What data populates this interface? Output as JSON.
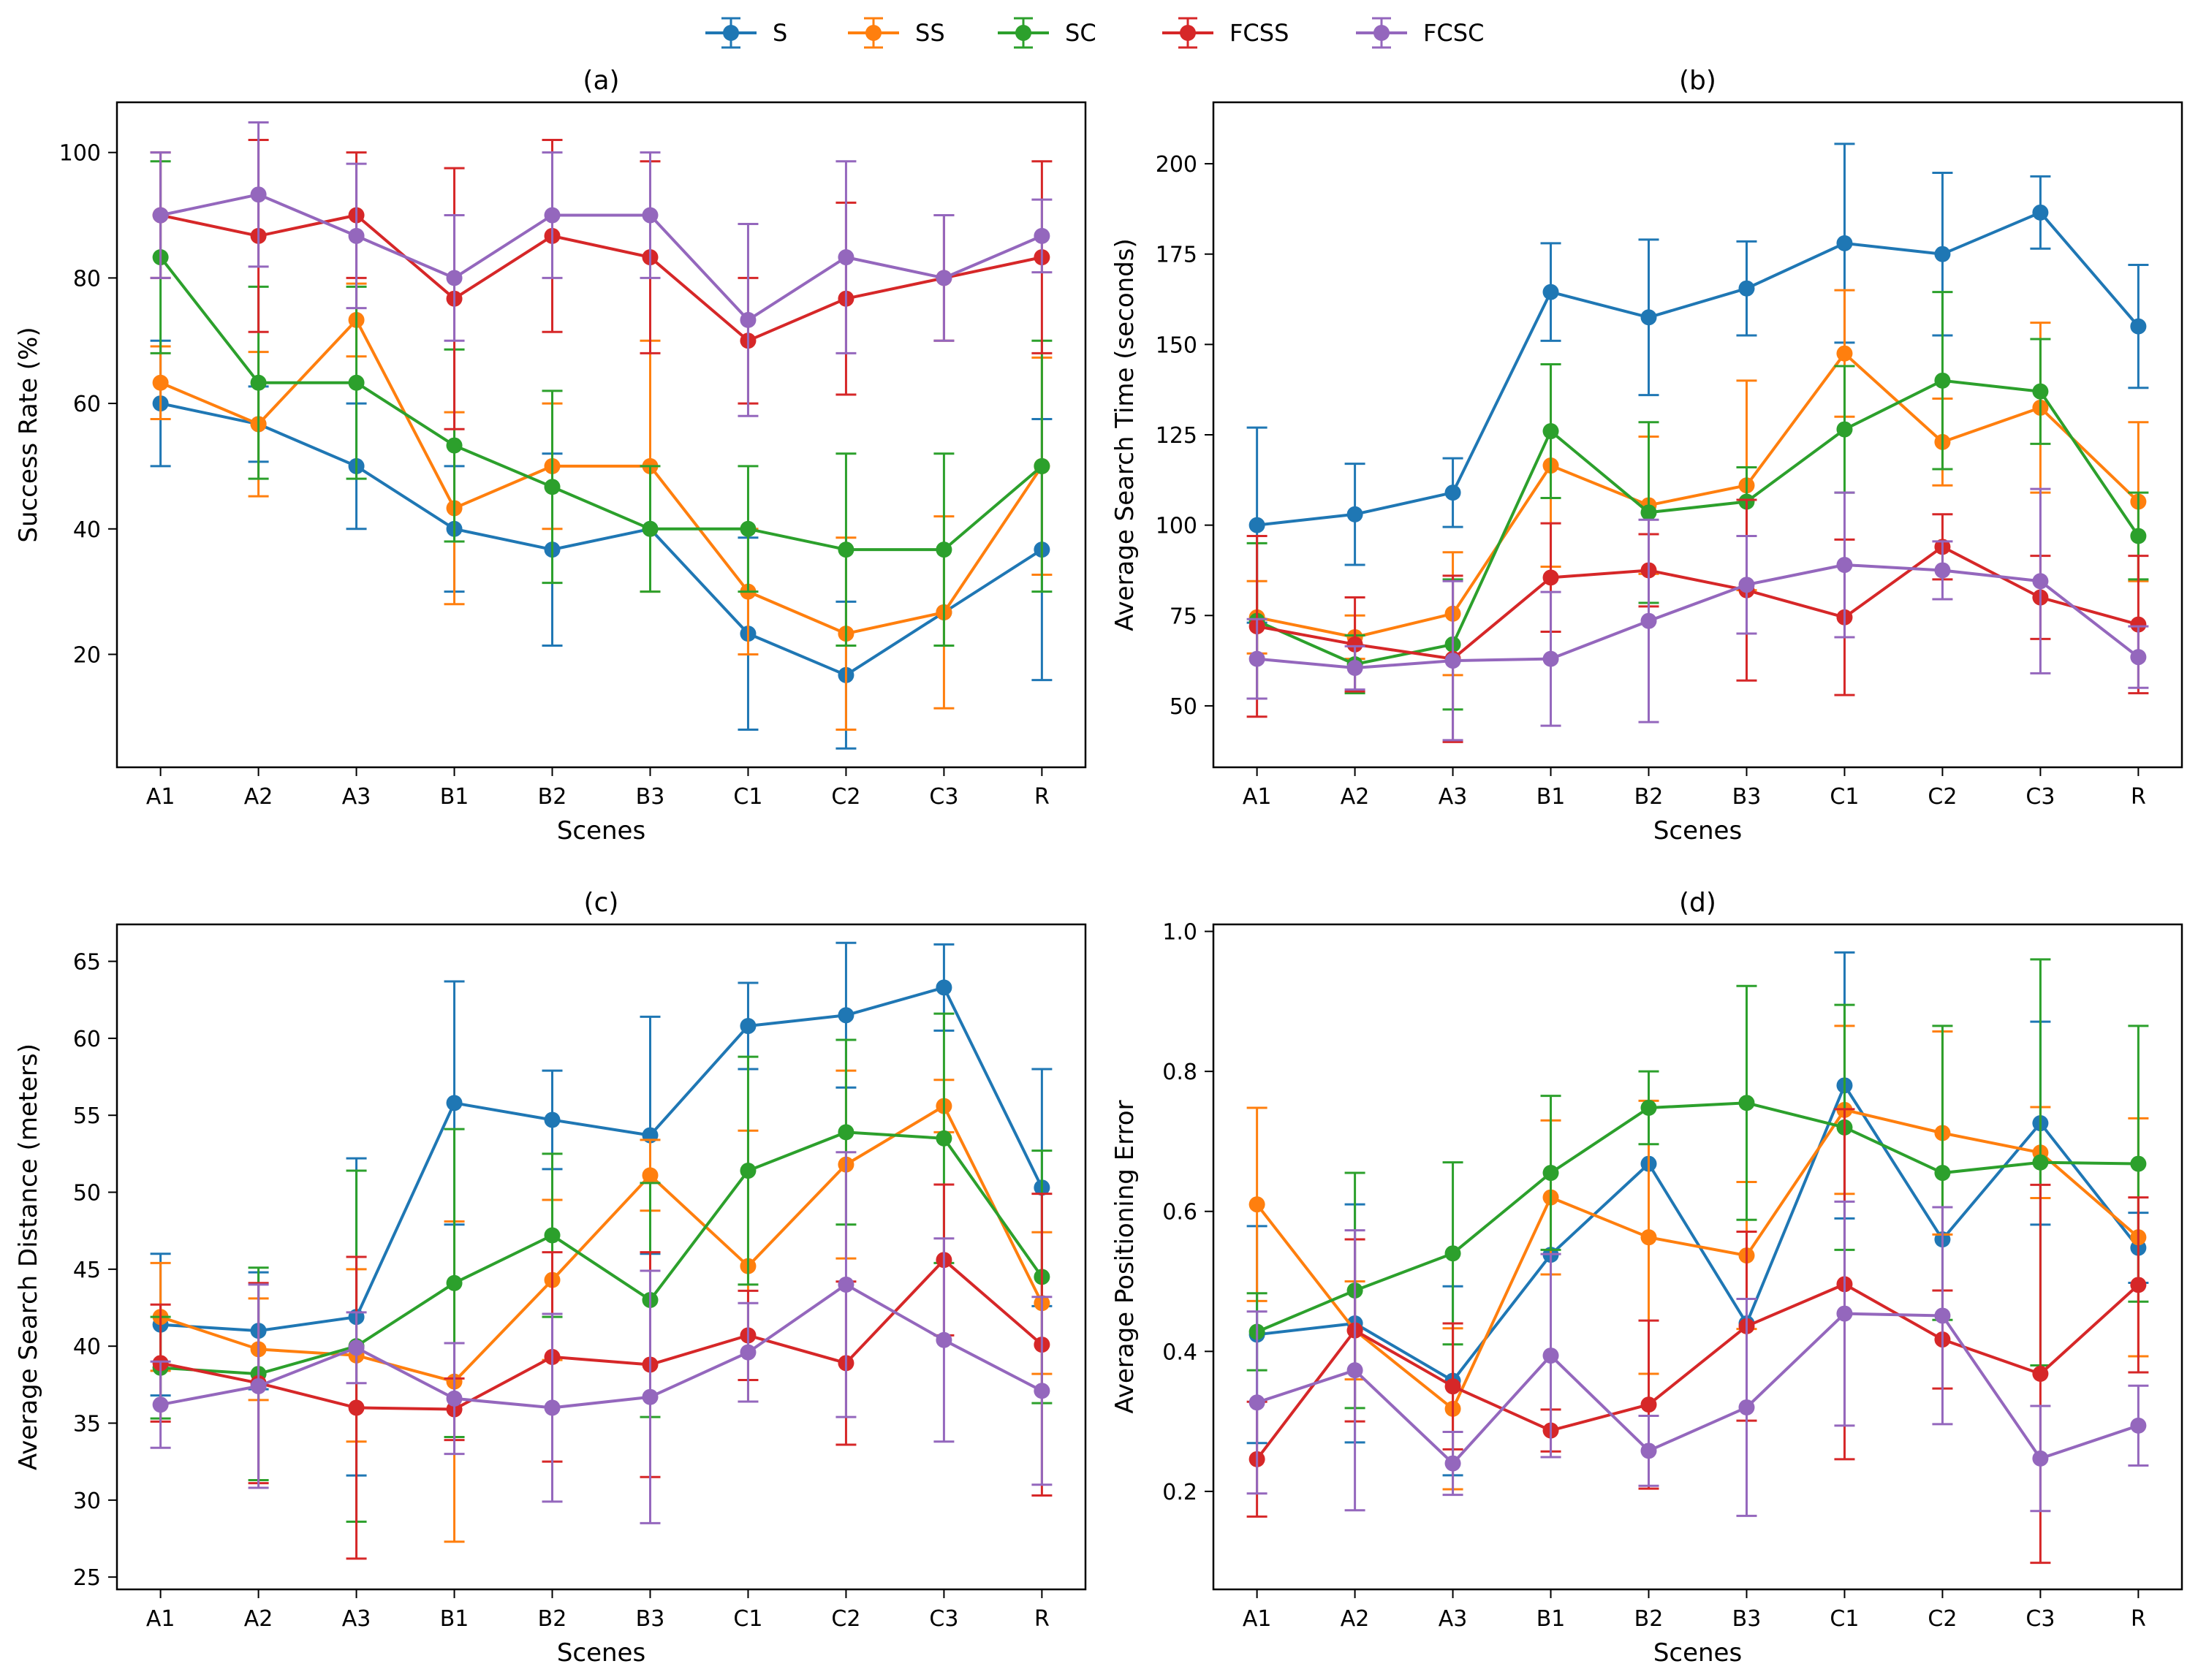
{
  "legend": [
    {
      "name": "S",
      "color": "#1f77b4"
    },
    {
      "name": "SS",
      "color": "#ff7f0e"
    },
    {
      "name": "SC",
      "color": "#2ca02c"
    },
    {
      "name": "FCSS",
      "color": "#d62728"
    },
    {
      "name": "FCSC",
      "color": "#9467bd"
    }
  ],
  "chart_data": [
    {
      "type": "line",
      "title": "(a)",
      "xlabel": "Scenes",
      "ylabel": "Success Rate (%)",
      "categories": [
        "A1",
        "A2",
        "A3",
        "B1",
        "B2",
        "B3",
        "C1",
        "C2",
        "C3",
        "R"
      ],
      "ylim": [
        2,
        108
      ],
      "yticks": [
        20,
        40,
        60,
        80,
        100
      ],
      "yticklabels": [
        "20",
        "40",
        "60",
        "80",
        "100"
      ],
      "series": [
        {
          "name": "S",
          "values": [
            60,
            56.7,
            50,
            40,
            36.7,
            40,
            23.3,
            16.7,
            26.7,
            36.7
          ],
          "errors": [
            10,
            6,
            10,
            10,
            15.3,
            0,
            15.3,
            11.7,
            0,
            20.8
          ]
        },
        {
          "name": "SS",
          "values": [
            63.3,
            56.7,
            73.3,
            43.3,
            50,
            50,
            30,
            23.3,
            26.7,
            50
          ],
          "errors": [
            5.8,
            11.5,
            5.8,
            15.3,
            10,
            20,
            10,
            15.3,
            15.3,
            17.3
          ]
        },
        {
          "name": "SC",
          "values": [
            83.3,
            63.3,
            63.3,
            53.3,
            46.7,
            40,
            40,
            36.7,
            36.7,
            50
          ],
          "errors": [
            15.3,
            15.3,
            15.3,
            15.3,
            15.3,
            10,
            10,
            15.3,
            15.3,
            20
          ]
        },
        {
          "name": "FCSS",
          "values": [
            90,
            86.7,
            90,
            76.7,
            86.7,
            83.3,
            70,
            76.7,
            80,
            83.3
          ],
          "errors": [
            10,
            15.3,
            10,
            20.8,
            15.3,
            15.3,
            10,
            15.3,
            10,
            15.3
          ]
        },
        {
          "name": "FCSC",
          "values": [
            90,
            93.3,
            86.7,
            80,
            90,
            90,
            73.3,
            83.3,
            80,
            86.7
          ],
          "errors": [
            10,
            11.5,
            11.5,
            10,
            10,
            10,
            15.3,
            15.3,
            10,
            5.8
          ]
        }
      ]
    },
    {
      "type": "line",
      "title": "(b)",
      "xlabel": "Scenes",
      "ylabel": "Average Search Time (seconds)",
      "categories": [
        "A1",
        "A2",
        "A3",
        "B1",
        "B2",
        "B3",
        "C1",
        "C2",
        "C3",
        "R"
      ],
      "ylim": [
        33,
        217
      ],
      "yticks": [
        50,
        75,
        100,
        125,
        150,
        175,
        200
      ],
      "yticklabels": [
        "50",
        "75",
        "100",
        "125",
        "150",
        "175",
        "200"
      ],
      "series": [
        {
          "name": "S",
          "values": [
            100,
            103,
            109,
            164.5,
            157.5,
            165.5,
            178,
            175,
            186.5,
            155
          ],
          "errors": [
            27,
            14,
            9.5,
            13.5,
            21.5,
            13,
            27.5,
            22.5,
            10,
            17
          ]
        },
        {
          "name": "SS",
          "values": [
            74.5,
            69,
            75.5,
            116.5,
            105.5,
            111,
            147.5,
            123,
            132.5,
            106.5
          ],
          "errors": [
            10,
            6,
            17,
            28,
            19,
            29,
            17.5,
            12,
            23.5,
            22
          ]
        },
        {
          "name": "SC",
          "values": [
            73.5,
            61.5,
            67,
            126,
            103.5,
            106.5,
            126.5,
            140,
            137,
            97
          ],
          "errors": [
            21.5,
            8,
            18,
            18.5,
            25,
            9.5,
            17.5,
            24.5,
            14.5,
            12
          ]
        },
        {
          "name": "FCSS",
          "values": [
            72,
            67,
            63,
            85.5,
            87.5,
            82,
            74.5,
            94,
            80,
            72.5
          ],
          "errors": [
            25,
            13,
            23,
            15,
            10,
            25,
            21.5,
            9,
            11.5,
            19
          ]
        },
        {
          "name": "FCSC",
          "values": [
            63,
            60.5,
            62.5,
            63,
            73.5,
            83.5,
            89,
            87.5,
            84.5,
            63.5
          ],
          "errors": [
            11,
            6,
            22,
            18.5,
            28,
            13.5,
            20,
            8,
            25.5,
            8.5
          ]
        }
      ]
    },
    {
      "type": "line",
      "title": "(c)",
      "xlabel": "Scenes",
      "ylabel": "Average Search Distance (meters)",
      "categories": [
        "A1",
        "A2",
        "A3",
        "B1",
        "B2",
        "B3",
        "C1",
        "C2",
        "C3",
        "R"
      ],
      "ylim": [
        24.2,
        67.4
      ],
      "yticks": [
        25,
        30,
        35,
        40,
        45,
        50,
        55,
        60,
        65
      ],
      "yticklabels": [
        "25",
        "30",
        "35",
        "40",
        "45",
        "50",
        "55",
        "60",
        "65"
      ],
      "series": [
        {
          "name": "S",
          "values": [
            41.4,
            41.0,
            41.9,
            55.8,
            54.7,
            53.7,
            60.8,
            61.5,
            63.3,
            50.3
          ],
          "errors": [
            4.6,
            3.8,
            10.3,
            7.9,
            3.2,
            7.7,
            2.8,
            4.7,
            2.8,
            7.7
          ]
        },
        {
          "name": "SS",
          "values": [
            41.9,
            39.8,
            39.4,
            37.7,
            44.3,
            51.1,
            45.2,
            51.8,
            55.6,
            42.8
          ],
          "errors": [
            3.5,
            3.3,
            5.6,
            10.4,
            5.2,
            2.3,
            8.8,
            6.1,
            1.7,
            4.6
          ]
        },
        {
          "name": "SC",
          "values": [
            38.6,
            38.2,
            40.0,
            44.1,
            47.2,
            43.0,
            51.4,
            53.9,
            53.5,
            44.5
          ],
          "errors": [
            3.3,
            6.9,
            11.4,
            10.0,
            5.3,
            7.6,
            7.4,
            6.0,
            8.1,
            8.2
          ]
        },
        {
          "name": "FCSS",
          "values": [
            38.9,
            37.6,
            36.0,
            35.9,
            39.3,
            38.8,
            40.7,
            38.9,
            45.6,
            40.1
          ],
          "errors": [
            3.8,
            6.5,
            9.8,
            2.0,
            6.8,
            7.3,
            2.9,
            5.3,
            4.9,
            9.8
          ]
        },
        {
          "name": "FCSC",
          "values": [
            36.2,
            37.4,
            39.9,
            36.6,
            36.0,
            36.7,
            39.6,
            44.0,
            40.4,
            37.1
          ],
          "errors": [
            2.8,
            6.6,
            2.3,
            3.6,
            6.1,
            8.2,
            3.2,
            8.6,
            6.6,
            6.1
          ]
        }
      ]
    },
    {
      "type": "line",
      "title": "(d)",
      "xlabel": "Scenes",
      "ylabel": "Average Positioning Error",
      "categories": [
        "A1",
        "A2",
        "A3",
        "B1",
        "B2",
        "B3",
        "C1",
        "C2",
        "C3",
        "R"
      ],
      "ylim": [
        0.06,
        1.01
      ],
      "yticks": [
        0.2,
        0.4,
        0.6,
        0.8,
        1.0
      ],
      "yticklabels": [
        "0.2",
        "0.4",
        "0.6",
        "0.8",
        "1.0"
      ],
      "series": [
        {
          "name": "S",
          "values": [
            0.424,
            0.44,
            0.358,
            0.538,
            0.668,
            0.44,
            0.78,
            0.56,
            0.726,
            0.548
          ],
          "errors": [
            0.155,
            0.17,
            0.135,
            0.0,
            0.0,
            0.0,
            0.19,
            0.0,
            0.145,
            0.05
          ]
        },
        {
          "name": "SS",
          "values": [
            0.61,
            0.43,
            0.318,
            0.62,
            0.563,
            0.537,
            0.745,
            0.712,
            0.684,
            0.563
          ],
          "errors": [
            0.138,
            0.07,
            0.115,
            0.11,
            0.195,
            0.105,
            0.12,
            0.145,
            0.065,
            0.17
          ]
        },
        {
          "name": "SC",
          "values": [
            0.428,
            0.487,
            0.54,
            0.655,
            0.748,
            0.755,
            0.72,
            0.655,
            0.67,
            0.668
          ],
          "errors": [
            0.055,
            0.168,
            0.13,
            0.11,
            0.052,
            0.167,
            0.175,
            0.21,
            0.29,
            0.197
          ]
        },
        {
          "name": "FCSS",
          "values": [
            0.246,
            0.43,
            0.35,
            0.287,
            0.324,
            0.436,
            0.496,
            0.417,
            0.368,
            0.495
          ],
          "errors": [
            0.082,
            0.13,
            0.09,
            0.03,
            0.12,
            0.135,
            0.25,
            0.07,
            0.27,
            0.125
          ]
        },
        {
          "name": "FCSC",
          "values": [
            0.327,
            0.373,
            0.24,
            0.394,
            0.258,
            0.32,
            0.454,
            0.451,
            0.247,
            0.294
          ],
          "errors": [
            0.13,
            0.2,
            0.045,
            0.145,
            0.05,
            0.155,
            0.16,
            0.155,
            0.075,
            0.057
          ]
        }
      ]
    }
  ]
}
